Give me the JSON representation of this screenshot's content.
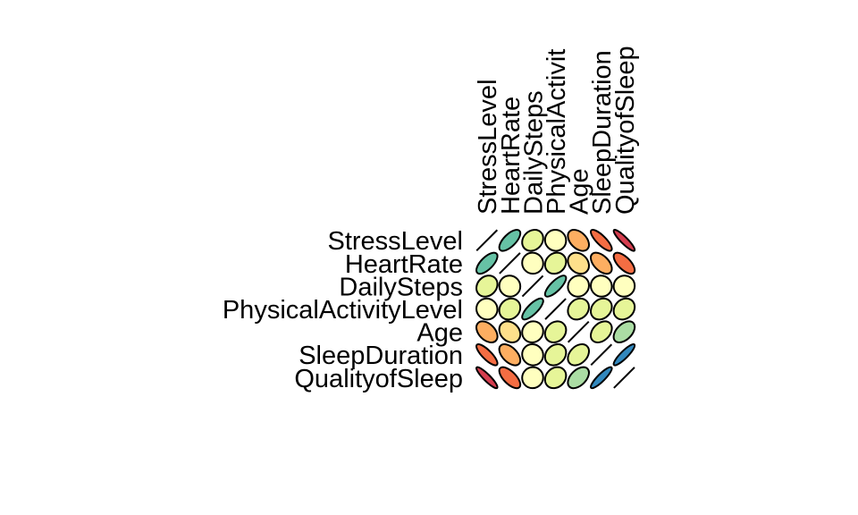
{
  "chart_data": {
    "type": "heatmap",
    "subtype": "correlation-ellipse-matrix",
    "variables": [
      "StressLevel",
      "HeartRate",
      "DailySteps",
      "PhysicalActivityLevel",
      "Age",
      "SleepDuration",
      "QualityofSleep"
    ],
    "column_labels": [
      "StressLevel",
      "HeartRate",
      "DailySteps",
      "PhysicalActivit",
      "Age",
      "SleepDuration",
      "QualityofSleep"
    ],
    "matrix": [
      [
        1.0,
        0.67,
        0.19,
        -0.03,
        -0.42,
        -0.81,
        -0.9
      ],
      [
        0.67,
        1.0,
        -0.03,
        0.14,
        -0.23,
        -0.52,
        -0.66
      ],
      [
        0.19,
        -0.03,
        1.0,
        0.77,
        0.06,
        -0.04,
        0.02
      ],
      [
        -0.03,
        0.14,
        0.77,
        1.0,
        0.18,
        0.21,
        0.19
      ],
      [
        -0.42,
        -0.23,
        0.06,
        0.18,
        1.0,
        0.34,
        0.47
      ],
      [
        -0.81,
        -0.52,
        -0.04,
        0.21,
        0.34,
        1.0,
        0.88
      ],
      [
        -0.9,
        -0.66,
        0.02,
        0.19,
        0.47,
        0.88,
        1.0
      ]
    ],
    "value_range": [
      -1,
      1
    ],
    "diagonal": "line",
    "palette": [
      "#D53E4F",
      "#F46D43",
      "#FDAE61",
      "#FEE08B",
      "#FFFFBF",
      "#E6F598",
      "#ABDDA4",
      "#66C2A5",
      "#3288BD"
    ],
    "legend": "none"
  }
}
